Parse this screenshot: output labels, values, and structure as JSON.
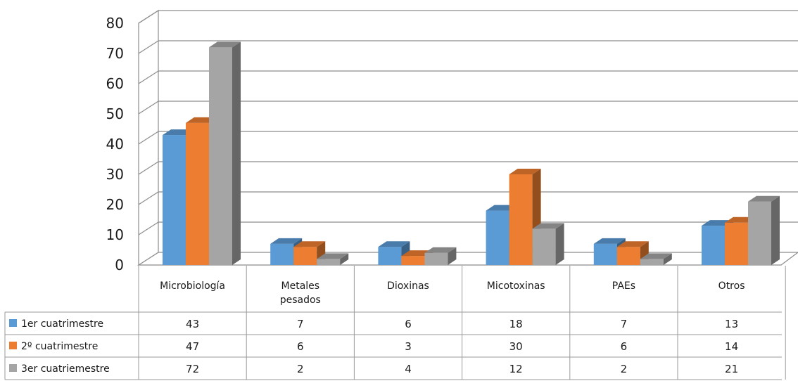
{
  "chart_data": {
    "type": "bar",
    "style": "3d-clustered-column-with-data-table",
    "categories": [
      "Microbiología",
      "Metales pesados",
      "Dioxinas",
      "Micotoxinas",
      "PAEs",
      "Otros"
    ],
    "series": [
      {
        "name": "1er cuatrimestre",
        "color": "#5b9bd5",
        "values": [
          43,
          7,
          6,
          18,
          7,
          13
        ]
      },
      {
        "name": "2º cuatrimestre",
        "color": "#ed7d31",
        "values": [
          47,
          6,
          3,
          30,
          6,
          14
        ]
      },
      {
        "name": "3er cuatriemestre",
        "color": "#a5a5a5",
        "values": [
          72,
          2,
          4,
          12,
          2,
          21
        ]
      }
    ],
    "yticks": [
      0,
      10,
      20,
      30,
      40,
      50,
      60,
      70,
      80
    ],
    "ylim": [
      0,
      80
    ],
    "grid": true,
    "legend": "data-table"
  }
}
